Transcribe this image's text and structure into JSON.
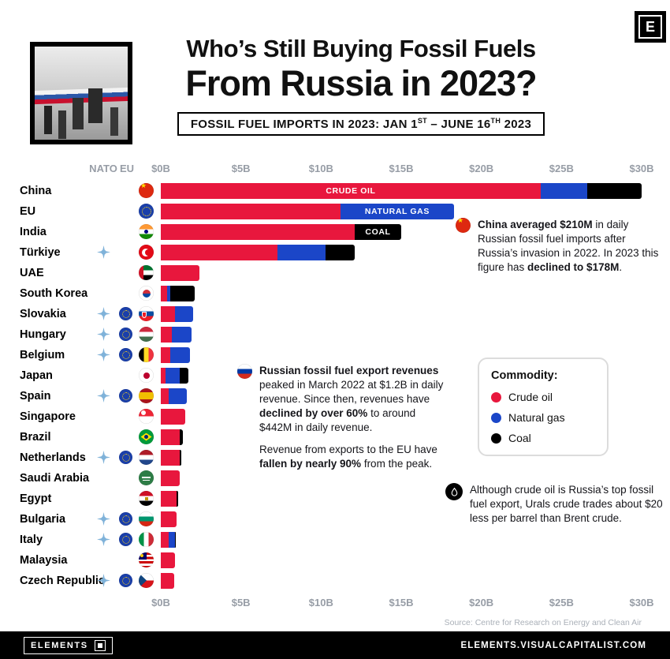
{
  "brand": {
    "logo_letter": "E",
    "footer_left": "ELEMENTS",
    "footer_right": "ELEMENTS.VISUALCAPITALIST.COM"
  },
  "header": {
    "title_line1": "Who’s Still Buying Fossil Fuels",
    "title_line2": "From Russia in 2023?",
    "subtitle": {
      "p1": "FOSSIL FUEL IMPORTS IN 2023: JAN 1",
      "sup1": "ST",
      "p2": " – JUNE 16",
      "sup2": "TH",
      "p3": " 2023"
    }
  },
  "axis": {
    "group_headers": [
      "NATO",
      "EU"
    ],
    "ticks": [
      "$0B",
      "$5B",
      "$10B",
      "$15B",
      "$20B",
      "$25B",
      "$30B"
    ]
  },
  "chart_data": {
    "type": "bar",
    "orientation": "horizontal",
    "stacked": true,
    "title": "Who’s Still Buying Fossil Fuels From Russia in 2023?",
    "subtitle": "Fossil fuel imports in 2023: Jan 1st – June 16th 2023",
    "unit": "USD billions",
    "xlim": [
      0,
      30
    ],
    "x_ticks": [
      "$0B",
      "$5B",
      "$10B",
      "$15B",
      "$20B",
      "$25B",
      "$30B"
    ],
    "series_names": [
      "Crude oil",
      "Natural gas",
      "Coal"
    ],
    "colors": {
      "crude": "#e8173d",
      "gas": "#1b46c8",
      "coal": "#000000"
    },
    "grid": false,
    "legend_position": "right-middle",
    "countries": [
      {
        "name": "China",
        "flag": "china",
        "nato": false,
        "eu_member": false,
        "crude": 23.7,
        "gas": 2.9,
        "coal": 3.4,
        "bar_label": "CRUDE OIL",
        "bar_label_series": "crude"
      },
      {
        "name": "EU",
        "flag": "eu",
        "nato": false,
        "eu_member": false,
        "crude": 11.2,
        "gas": 7.1,
        "coal": 0,
        "bar_label": "NATURAL GAS",
        "bar_label_series": "gas"
      },
      {
        "name": "India",
        "flag": "india",
        "nato": false,
        "eu_member": false,
        "crude": 12.1,
        "gas": 0,
        "coal": 2.9,
        "bar_label": "COAL",
        "bar_label_series": "coal"
      },
      {
        "name": "Türkiye",
        "flag": "turkiye",
        "nato": true,
        "eu_member": false,
        "crude": 7.3,
        "gas": 3.0,
        "coal": 1.8
      },
      {
        "name": "UAE",
        "flag": "uae",
        "nato": false,
        "eu_member": false,
        "crude": 2.4,
        "gas": 0,
        "coal": 0
      },
      {
        "name": "South Korea",
        "flag": "south-korea",
        "nato": false,
        "eu_member": false,
        "crude": 0.4,
        "gas": 0.2,
        "coal": 1.5
      },
      {
        "name": "Slovakia",
        "flag": "slovakia",
        "nato": true,
        "eu_member": true,
        "crude": 0.9,
        "gas": 1.1,
        "coal": 0
      },
      {
        "name": "Hungary",
        "flag": "hungary",
        "nato": true,
        "eu_member": true,
        "crude": 0.7,
        "gas": 1.2,
        "coal": 0
      },
      {
        "name": "Belgium",
        "flag": "belgium",
        "nato": true,
        "eu_member": true,
        "crude": 0.6,
        "gas": 1.2,
        "coal": 0
      },
      {
        "name": "Japan",
        "flag": "japan",
        "nato": false,
        "eu_member": false,
        "crude": 0.3,
        "gas": 0.9,
        "coal": 0.5
      },
      {
        "name": "Spain",
        "flag": "spain",
        "nato": true,
        "eu_member": true,
        "crude": 0.5,
        "gas": 1.1,
        "coal": 0
      },
      {
        "name": "Singapore",
        "flag": "singapore",
        "nato": false,
        "eu_member": false,
        "crude": 1.5,
        "gas": 0,
        "coal": 0
      },
      {
        "name": "Brazil",
        "flag": "brazil",
        "nato": false,
        "eu_member": false,
        "crude": 1.2,
        "gas": 0,
        "coal": 0.2
      },
      {
        "name": "Netherlands",
        "flag": "netherlands",
        "nato": true,
        "eu_member": true,
        "crude": 1.2,
        "gas": 0,
        "coal": 0.1
      },
      {
        "name": "Saudi Arabia",
        "flag": "saudi-arabia",
        "nato": false,
        "eu_member": false,
        "crude": 1.2,
        "gas": 0,
        "coal": 0
      },
      {
        "name": "Egypt",
        "flag": "egypt",
        "nato": false,
        "eu_member": false,
        "crude": 1.0,
        "gas": 0,
        "coal": 0.1
      },
      {
        "name": "Bulgaria",
        "flag": "bulgaria",
        "nato": true,
        "eu_member": true,
        "crude": 1.0,
        "gas": 0,
        "coal": 0
      },
      {
        "name": "Italy",
        "flag": "italy",
        "nato": true,
        "eu_member": true,
        "crude": 0.5,
        "gas": 0.4,
        "coal": 0.05
      },
      {
        "name": "Malaysia",
        "flag": "malaysia",
        "nato": false,
        "eu_member": false,
        "crude": 0.9,
        "gas": 0,
        "coal": 0
      },
      {
        "name": "Czech Republic",
        "flag": "czech-republic",
        "nato": true,
        "eu_member": true,
        "crude": 0.85,
        "gas": 0,
        "coal": 0
      }
    ]
  },
  "annotations": {
    "china": {
      "icon": "china-flag",
      "paragraphs": [
        [
          {
            "t": "China averaged $210M",
            "b": true
          },
          {
            "t": " in daily Russian fossil fuel imports after Russia’s invasion in 2022. In 2023 this figure has ",
            "b": false
          },
          {
            "t": "declined to $178M",
            "b": true
          },
          {
            "t": ".",
            "b": false
          }
        ]
      ]
    },
    "russia": {
      "icon": "russia-flag",
      "paragraphs": [
        [
          {
            "t": "Russian fossil fuel export revenues",
            "b": true
          },
          {
            "t": " peaked in March 2022 at $1.2B in daily revenue. Since then, revenues have ",
            "b": false
          },
          {
            "t": "declined by over 60%",
            "b": true
          },
          {
            "t": " to around $442M in daily revenue.",
            "b": false
          }
        ],
        [
          {
            "t": "Revenue from exports to the EU have ",
            "b": false
          },
          {
            "t": "fallen by nearly 90%",
            "b": true
          },
          {
            "t": " from the peak.",
            "b": false
          }
        ]
      ]
    },
    "oil": {
      "icon": "oil-drop",
      "paragraphs": [
        [
          {
            "t": "Although crude oil is Russia’s top fossil fuel export, Urals crude trades about $20 less per barrel than Brent crude.",
            "b": false
          }
        ]
      ]
    }
  },
  "legend": {
    "title": "Commodity:",
    "items": [
      {
        "label": "Crude oil",
        "color": "#e8173d"
      },
      {
        "label": "Natural gas",
        "color": "#1b46c8"
      },
      {
        "label": "Coal",
        "color": "#000000"
      }
    ]
  },
  "source": "Source: Centre for Research on Energy and Clean Air"
}
